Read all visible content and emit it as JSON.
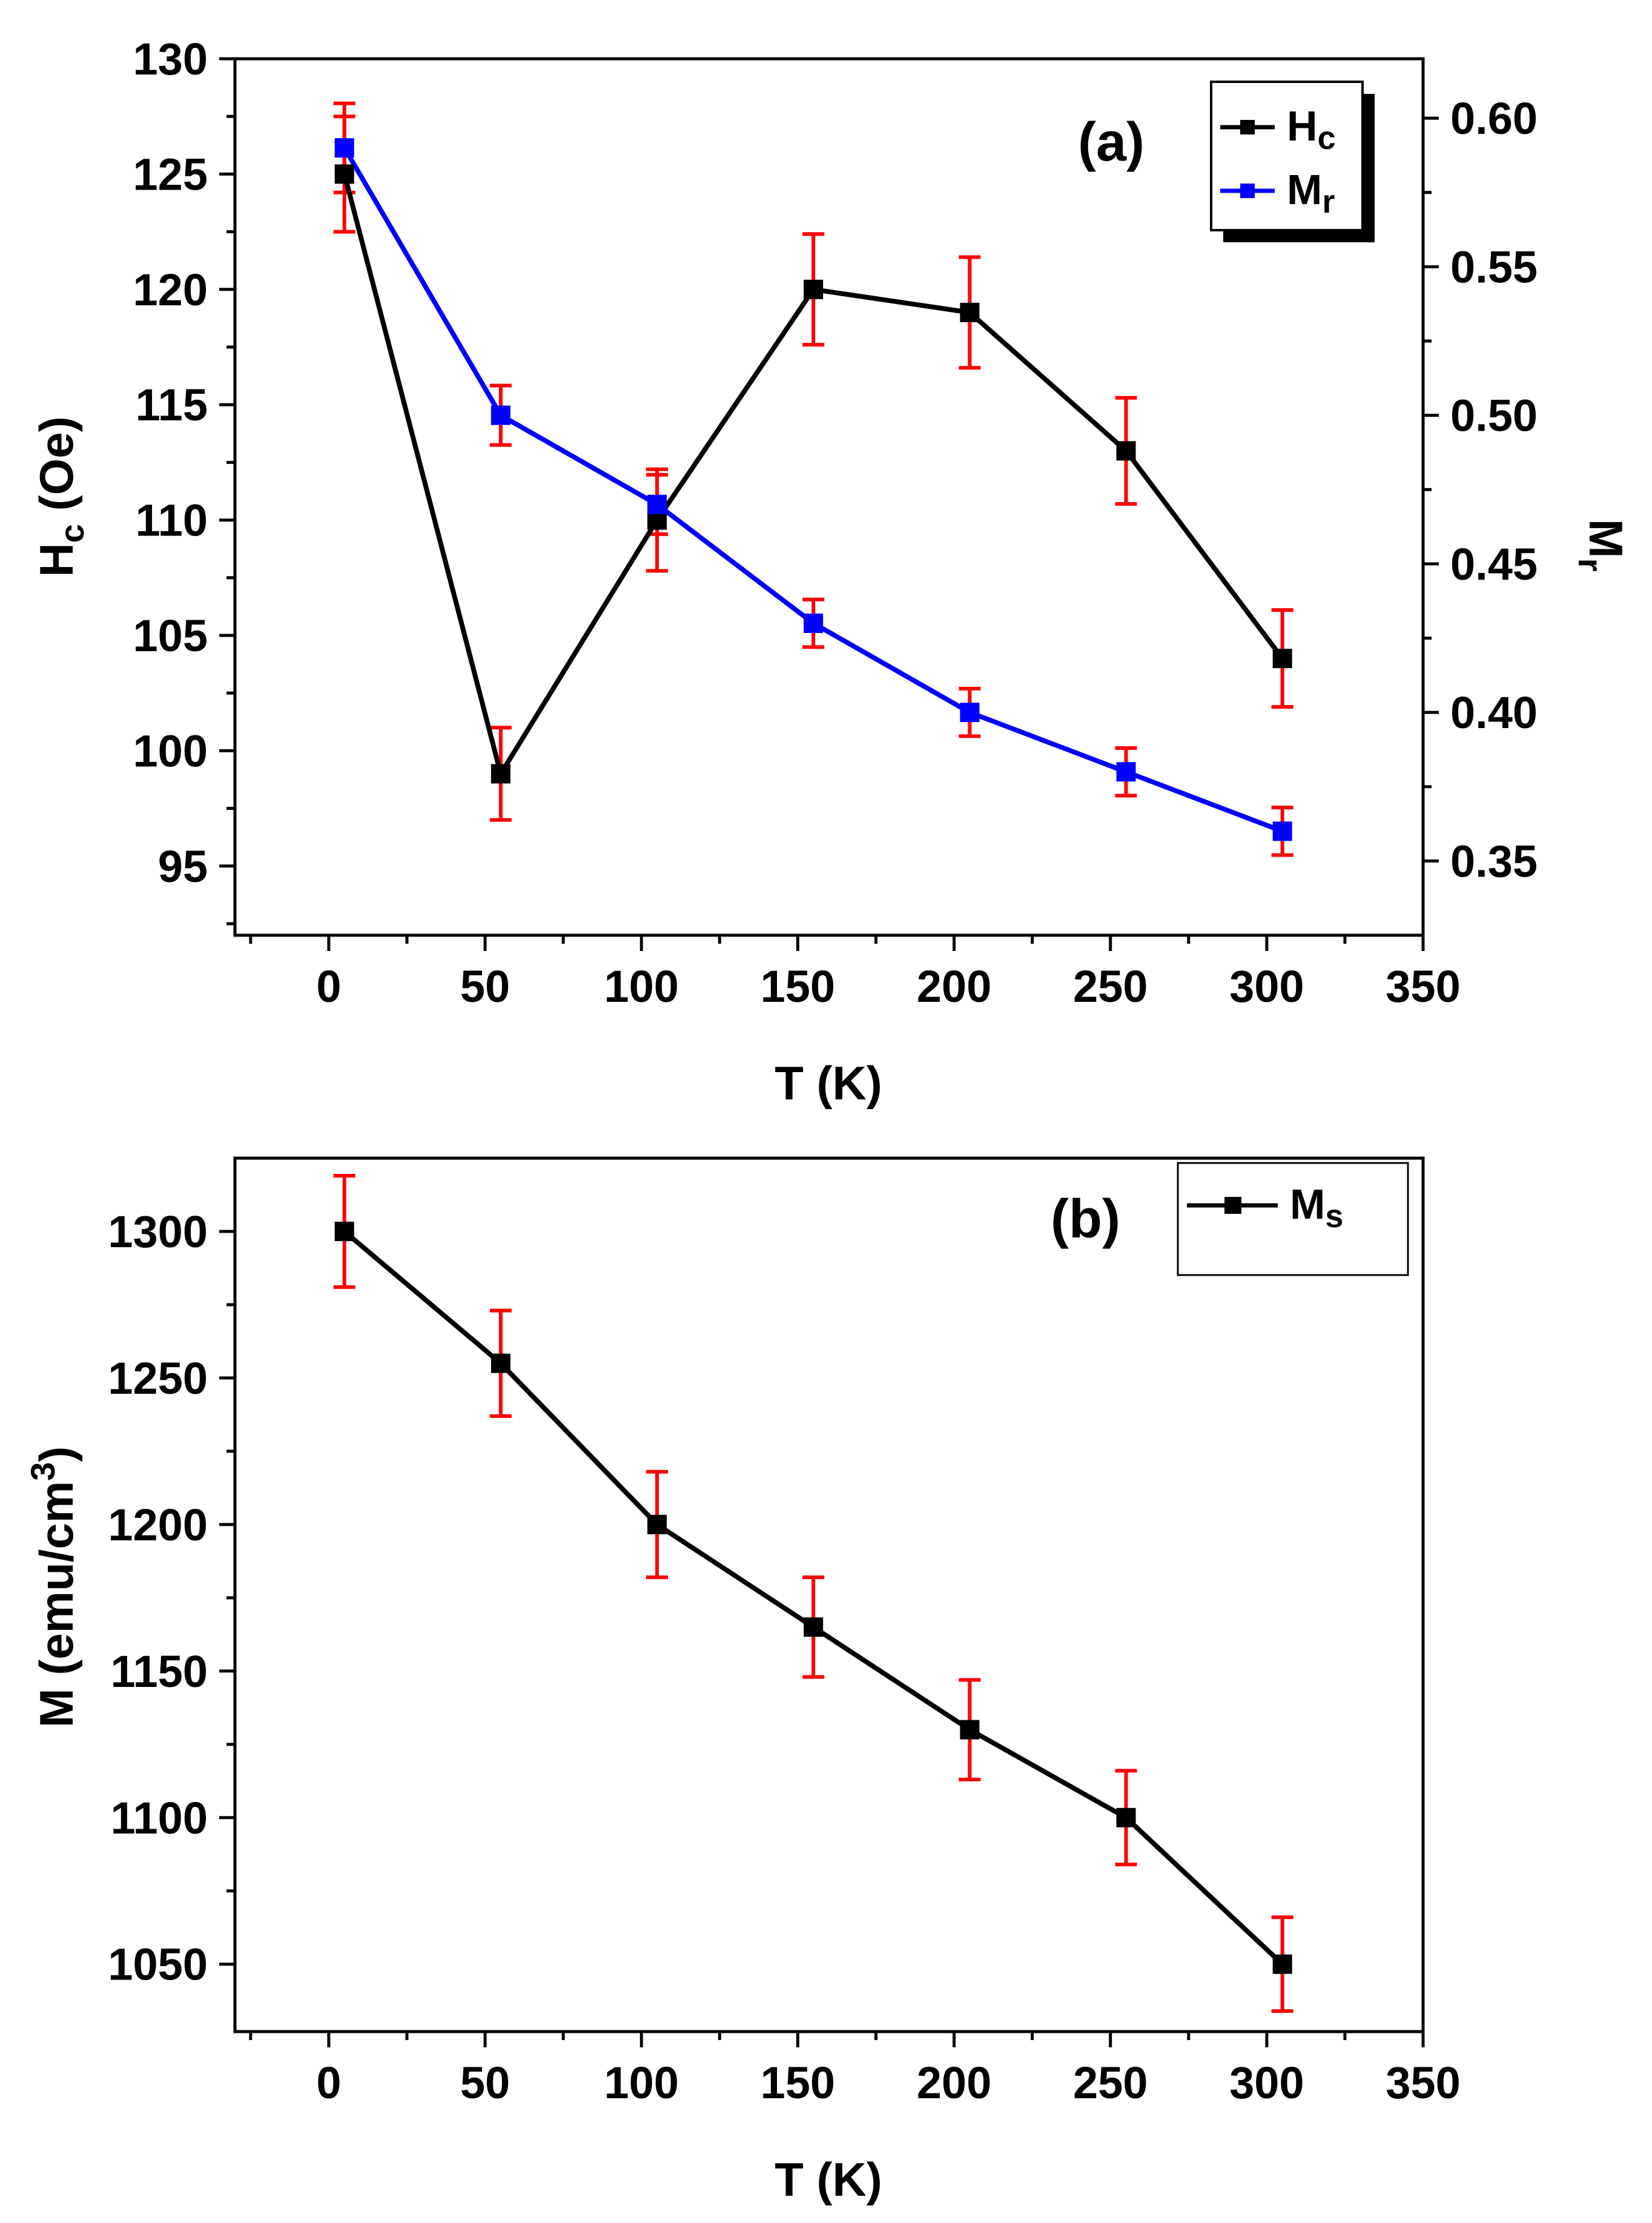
{
  "colors": {
    "black": "#000000",
    "blue": "#0000ff",
    "error_bars": "#ff0000"
  },
  "chart_data": [
    {
      "type": "line",
      "panel_label": "(a)",
      "xlabel": "T (K)",
      "ylabel_left": {
        "main": "H",
        "sub": "c",
        "rest": " (Oe)"
      },
      "ylabel_right": {
        "main": "M",
        "sub": "r"
      },
      "xlim": [
        -30,
        350
      ],
      "ylim_left": [
        92,
        130
      ],
      "ylim_right": [
        0.325,
        0.62
      ],
      "x_ticks": [
        "0",
        "50",
        "100",
        "150",
        "200",
        "250",
        "300",
        "350"
      ],
      "y_ticks_left": [
        "95",
        "100",
        "105",
        "110",
        "115",
        "120",
        "125",
        "130"
      ],
      "y_ticks_right": [
        "0.35",
        "0.40",
        "0.45",
        "0.50",
        "0.55",
        "0.60"
      ],
      "x": [
        5,
        55,
        105,
        155,
        205,
        255,
        305
      ],
      "series": [
        {
          "name": "Hc",
          "legend": {
            "main": "H",
            "sub": "c"
          },
          "axis": "left",
          "color": "#000000",
          "values": [
            125,
            99,
            110,
            120,
            119,
            113,
            104
          ],
          "errors": [
            2.5,
            2.0,
            2.2,
            2.4,
            2.4,
            2.3,
            2.1
          ]
        },
        {
          "name": "Mr",
          "legend": {
            "main": "M",
            "sub": "r"
          },
          "axis": "right",
          "color": "#0000ff",
          "values": [
            0.59,
            0.5,
            0.47,
            0.43,
            0.4,
            0.38,
            0.36
          ],
          "errors": [
            0.015,
            0.01,
            0.01,
            0.008,
            0.008,
            0.008,
            0.008
          ]
        }
      ],
      "legend_position": "top-right"
    },
    {
      "type": "line",
      "panel_label": "(b)",
      "xlabel": "T (K)",
      "ylabel": {
        "main": "M (emu/cm",
        "sup": "3",
        "rest": ")"
      },
      "xlim": [
        -30,
        350
      ],
      "ylim": [
        1027,
        1325
      ],
      "x_ticks": [
        "0",
        "50",
        "100",
        "150",
        "200",
        "250",
        "300",
        "350"
      ],
      "y_ticks": [
        "1050",
        "1100",
        "1150",
        "1200",
        "1250",
        "1300"
      ],
      "x": [
        5,
        55,
        105,
        155,
        205,
        255,
        305
      ],
      "series": [
        {
          "name": "Ms",
          "legend": {
            "main": "M",
            "sub": "s"
          },
          "color": "#000000",
          "values": [
            1300,
            1255,
            1200,
            1165,
            1130,
            1100,
            1050
          ],
          "errors": [
            19,
            18,
            18,
            17,
            17,
            16,
            16
          ]
        }
      ],
      "legend_position": "top-right"
    }
  ]
}
